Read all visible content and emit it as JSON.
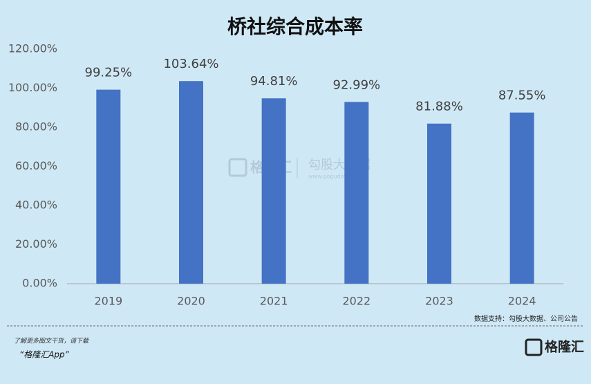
{
  "chart_data": {
    "type": "bar",
    "title": "桥社综合成本率",
    "categories": [
      "2019",
      "2020",
      "2021",
      "2022",
      "2023",
      "2024"
    ],
    "values": [
      99.25,
      103.64,
      94.81,
      92.99,
      81.88,
      87.55
    ],
    "value_labels": [
      "99.25%",
      "103.64%",
      "94.81%",
      "92.99%",
      "81.88%",
      "87.55%"
    ],
    "color": "#4472c4",
    "ylim": [
      0,
      120
    ],
    "yticks": [
      {
        "value": 0,
        "label": "0.00%"
      },
      {
        "value": 20,
        "label": "20.00%"
      },
      {
        "value": 40,
        "label": "40.00%"
      },
      {
        "value": 60,
        "label": "60.00%"
      },
      {
        "value": 80,
        "label": "80.00%"
      },
      {
        "value": 100,
        "label": "100.00%"
      },
      {
        "value": 120,
        "label": "120.00%"
      }
    ],
    "grid": false,
    "source": "数据支持：勾股大数据、公司公告"
  },
  "watermark": {
    "brand": "格隆汇",
    "partner": "勾股大数据",
    "url": "www.gogudata.com"
  },
  "footer": {
    "prompt": "了解更多图文干货，请下载",
    "app": "“格隆汇App”",
    "logo": "格隆汇"
  }
}
